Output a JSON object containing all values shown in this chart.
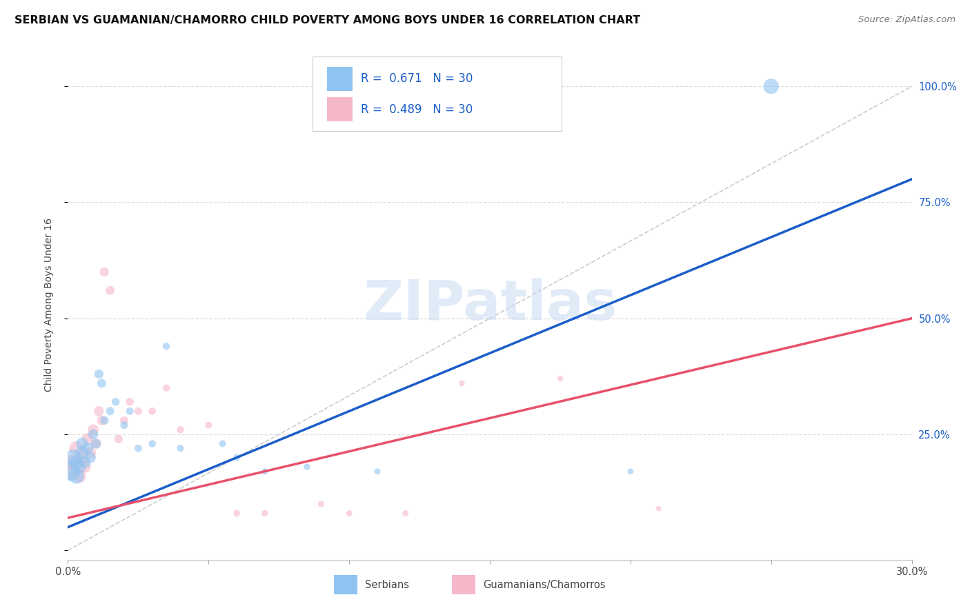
{
  "title": "SERBIAN VS GUAMANIAN/CHAMORRO CHILD POVERTY AMONG BOYS UNDER 16 CORRELATION CHART",
  "source": "Source: ZipAtlas.com",
  "ylabel": "Child Poverty Among Boys Under 16",
  "xlim": [
    0,
    0.3
  ],
  "ylim": [
    -0.02,
    1.08
  ],
  "blue_color": "#90c4f0",
  "pink_color": "#f5b8c8",
  "line_blue": "#1a5dc8",
  "line_pink": "#e8506a",
  "ref_line_color": "#cccccc",
  "grid_color": "#dddddd",
  "watermark": "ZIPatlas",
  "watermark_color": "#c5d8f2",
  "blue_r": "0.671",
  "blue_n": "30",
  "pink_r": "0.489",
  "pink_n": "30",
  "serbian_x": [
    0.001,
    0.002,
    0.003,
    0.003,
    0.004,
    0.005,
    0.005,
    0.006,
    0.007,
    0.008,
    0.009,
    0.01,
    0.011,
    0.012,
    0.013,
    0.015,
    0.017,
    0.02,
    0.022,
    0.025,
    0.03,
    0.035,
    0.04,
    0.055,
    0.06,
    0.07,
    0.085,
    0.11,
    0.2,
    0.25
  ],
  "serbian_y": [
    0.17,
    0.2,
    0.16,
    0.19,
    0.18,
    0.21,
    0.23,
    0.19,
    0.22,
    0.2,
    0.25,
    0.23,
    0.38,
    0.36,
    0.28,
    0.3,
    0.32,
    0.27,
    0.3,
    0.22,
    0.23,
    0.44,
    0.22,
    0.23,
    0.2,
    0.17,
    0.18,
    0.17,
    0.17,
    1.0
  ],
  "guam_x": [
    0.001,
    0.002,
    0.003,
    0.004,
    0.005,
    0.006,
    0.007,
    0.008,
    0.009,
    0.01,
    0.011,
    0.012,
    0.013,
    0.015,
    0.018,
    0.02,
    0.022,
    0.025,
    0.03,
    0.035,
    0.04,
    0.05,
    0.06,
    0.07,
    0.09,
    0.1,
    0.12,
    0.14,
    0.175,
    0.21
  ],
  "guam_y": [
    0.17,
    0.19,
    0.22,
    0.16,
    0.2,
    0.18,
    0.24,
    0.21,
    0.26,
    0.23,
    0.3,
    0.28,
    0.6,
    0.56,
    0.24,
    0.28,
    0.32,
    0.3,
    0.3,
    0.35,
    0.26,
    0.27,
    0.08,
    0.08,
    0.1,
    0.08,
    0.08,
    0.36,
    0.37,
    0.09
  ],
  "serbian_sizes": [
    400,
    300,
    250,
    220,
    200,
    180,
    160,
    150,
    140,
    130,
    110,
    100,
    90,
    85,
    80,
    75,
    70,
    65,
    62,
    60,
    58,
    55,
    52,
    50,
    48,
    46,
    44,
    42,
    40,
    260
  ],
  "guam_sizes": [
    300,
    250,
    220,
    200,
    180,
    160,
    150,
    140,
    130,
    120,
    110,
    100,
    90,
    85,
    80,
    75,
    70,
    65,
    62,
    58,
    55,
    52,
    50,
    48,
    44,
    42,
    40,
    38,
    36,
    34
  ],
  "blue_line_x0": 0.0,
  "blue_line_y0": 0.05,
  "blue_line_x1": 0.3,
  "blue_line_y1": 0.8,
  "pink_line_x0": 0.0,
  "pink_line_y0": 0.07,
  "pink_line_x1": 0.3,
  "pink_line_y1": 0.5
}
